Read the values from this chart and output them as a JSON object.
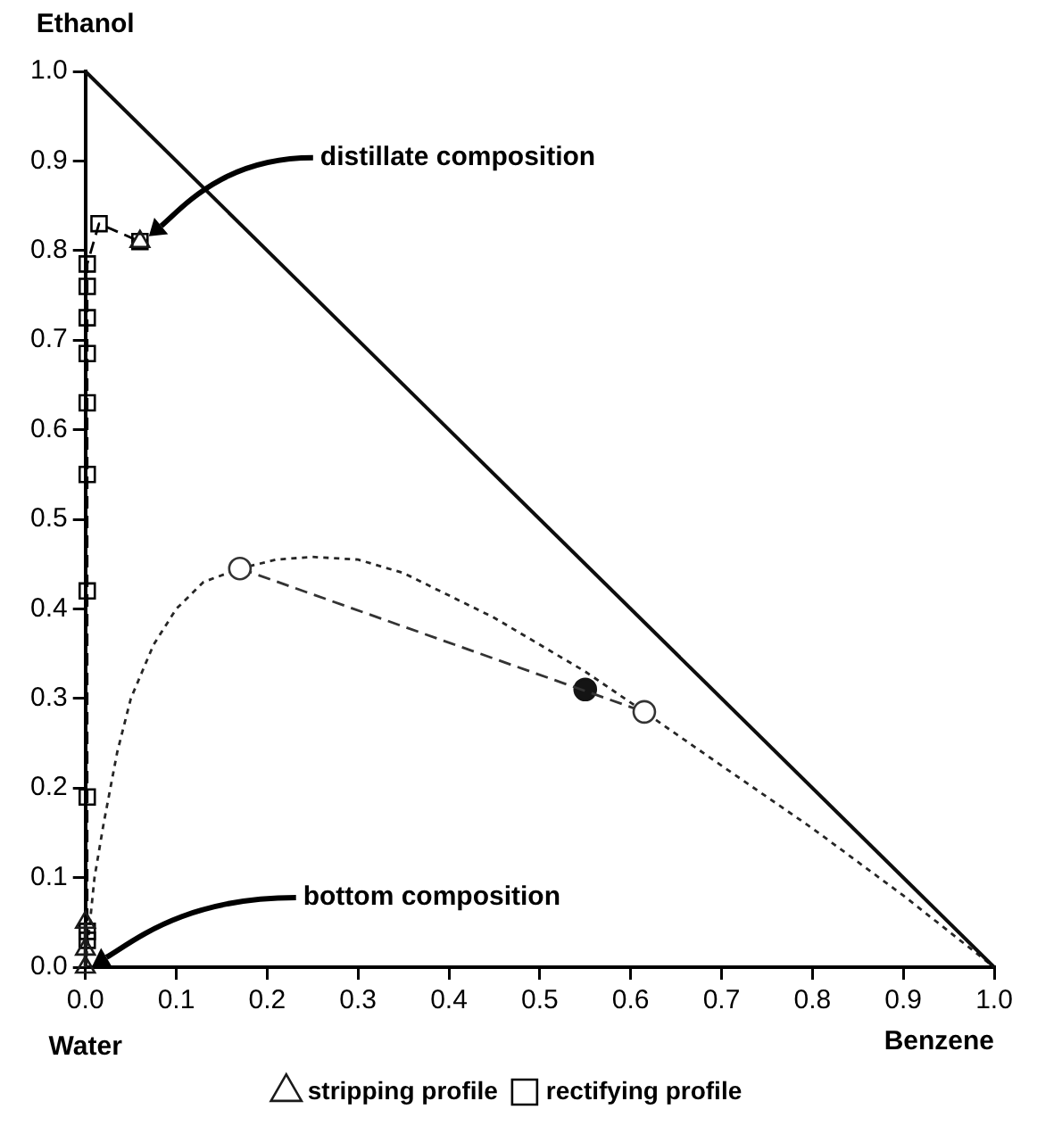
{
  "chart_data": {
    "type": "line",
    "xlabel": "Benzene",
    "ylabel": "Ethanol",
    "xlim": [
      0,
      1
    ],
    "ylim": [
      0,
      1
    ],
    "xticks": [
      {
        "value": 0,
        "label": "0.0"
      },
      0.1,
      0.2,
      0.3,
      0.4,
      0.5,
      0.6,
      0.7,
      0.8,
      0.9,
      {
        "value": 1,
        "label": "1.0"
      }
    ],
    "yticks": [
      {
        "value": 0,
        "label": "0.0"
      },
      0.1,
      0.2,
      0.3,
      0.4,
      0.5,
      0.6,
      0.7,
      0.8,
      0.9,
      {
        "value": 1,
        "label": "1.0"
      }
    ],
    "grid": false,
    "legend": "bottom",
    "annotations": [
      "distillate composition",
      "bottom composition",
      "Water"
    ],
    "series": [
      {
        "name": "rectifying profile",
        "type": "line",
        "line_style": "dashed",
        "marker": "square",
        "color": "#000000",
        "x": [
          0.002,
          0.002,
          0.002,
          0.002,
          0.002,
          0.002,
          0.002,
          0.002,
          0.002,
          0.002,
          0.015,
          0.06
        ],
        "values": [
          0.03,
          0.04,
          0.19,
          0.42,
          0.55,
          0.63,
          0.685,
          0.725,
          0.76,
          0.785,
          0.83,
          0.81
        ]
      },
      {
        "name": "stripping profile",
        "type": "line",
        "line_style": "solid",
        "marker": "triangle",
        "color": "#1a1a1a",
        "x": [
          0,
          0,
          0,
          0.03,
          0.06
        ],
        "values": [
          0,
          0.02,
          0.05,
          null,
          0.81
        ]
      },
      {
        "type": "line",
        "line_style": "solid",
        "marker": "none",
        "color": "#0d0d0d",
        "x": [
          0,
          1
        ],
        "values": [
          1,
          0
        ]
      },
      {
        "type": "line",
        "line_style": "dashed",
        "marker": "circle",
        "color": "#333333",
        "x": [
          0.17,
          0.615
        ],
        "values": [
          0.445,
          0.285
        ]
      },
      {
        "type": "line",
        "line_style": "dotted",
        "marker": "none",
        "color": "#262626",
        "x": [
          0,
          0.01,
          0.02,
          0.035,
          0.05,
          0.075,
          0.1,
          0.13,
          0.17,
          0.21,
          0.25,
          0.3,
          0.35,
          0.4,
          0.45,
          0.5,
          0.55,
          0.615,
          0.7,
          0.8,
          0.9,
          0.95,
          1
        ],
        "values": [
          0,
          0.1,
          0.16,
          0.24,
          0.3,
          0.36,
          0.4,
          0.43,
          0.445,
          0.455,
          0.458,
          0.455,
          0.44,
          0.415,
          0.39,
          0.36,
          0.33,
          0.285,
          0.225,
          0.155,
          0.08,
          0.04,
          0
        ]
      },
      {
        "type": "scatter",
        "marker": "circle",
        "color": "#141414",
        "x": [
          0.55
        ],
        "values": [
          0.31
        ]
      }
    ]
  }
}
